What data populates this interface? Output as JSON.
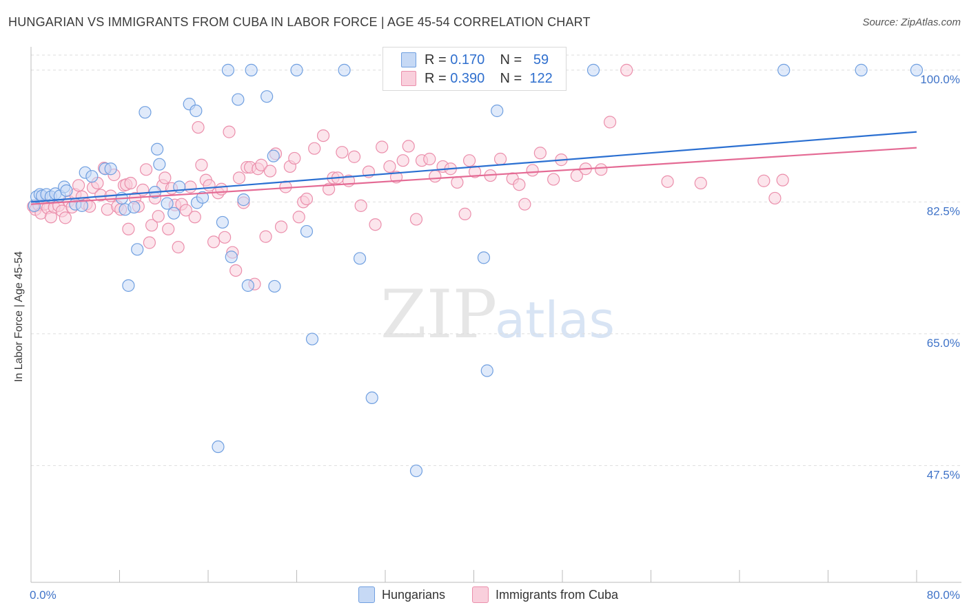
{
  "header": {
    "title": "HUNGARIAN VS IMMIGRANTS FROM CUBA IN LABOR FORCE | AGE 45-54 CORRELATION CHART",
    "source": "Source: ZipAtlas.com"
  },
  "watermark": {
    "zip": "ZIP",
    "atlas": "atlas"
  },
  "legend_top": {
    "rows": [
      {
        "r_label": "R =",
        "r_value": "0.170",
        "n_label": "N =",
        "n_value": "59"
      },
      {
        "r_label": "R =",
        "r_value": "0.390",
        "n_label": "N =",
        "n_value": "122"
      }
    ]
  },
  "legend_bottom": {
    "items": [
      "Hungarians",
      "Immigrants from Cuba"
    ]
  },
  "colors": {
    "blue_fill": "#c6d9f5",
    "blue_stroke": "#6f9fe0",
    "blue_line": "#2a6fd1",
    "pink_fill": "#f9cfdc",
    "pink_stroke": "#eb8eab",
    "pink_line": "#e46a94",
    "tick_label": "#3f73c8",
    "grid": "#dddddd"
  },
  "chart_data": {
    "type": "scatter",
    "title": "HUNGARIAN VS IMMIGRANTS FROM CUBA IN LABOR FORCE | AGE 45-54 CORRELATION CHART",
    "xlabel": "",
    "ylabel": "In Labor Force | Age 45-54",
    "xlim": [
      0,
      80
    ],
    "ylim": [
      32,
      102
    ],
    "x_tick_labels": [
      "0.0%",
      "80.0%"
    ],
    "y_ticks": [
      47.5,
      65.0,
      82.5,
      100.0
    ],
    "y_tick_labels": [
      "47.5%",
      "65.0%",
      "82.5%",
      "100.0%"
    ],
    "grid": true,
    "legend_position": "top-center",
    "series": [
      {
        "name": "Hungarians",
        "r": 0.17,
        "n": 59,
        "trend": {
          "x": [
            0,
            80
          ],
          "y": [
            82.5,
            91.8
          ]
        },
        "points": [
          [
            0.3,
            82.0
          ],
          [
            0.5,
            83.2
          ],
          [
            0.8,
            83.5
          ],
          [
            1.0,
            83.3
          ],
          [
            1.4,
            83.5
          ],
          [
            1.8,
            83.2
          ],
          [
            2.2,
            83.6
          ],
          [
            2.6,
            83.3
          ],
          [
            3.0,
            84.5
          ],
          [
            3.2,
            84.0
          ],
          [
            4.0,
            82.2
          ],
          [
            4.6,
            82.0
          ],
          [
            4.9,
            86.4
          ],
          [
            5.5,
            85.9
          ],
          [
            6.7,
            86.9
          ],
          [
            7.2,
            86.9
          ],
          [
            8.2,
            83.0
          ],
          [
            8.5,
            81.5
          ],
          [
            9.3,
            81.8
          ],
          [
            9.6,
            76.2
          ],
          [
            8.8,
            71.4
          ],
          [
            10.3,
            94.4
          ],
          [
            11.2,
            83.8
          ],
          [
            11.4,
            89.5
          ],
          [
            11.6,
            87.5
          ],
          [
            12.3,
            82.3
          ],
          [
            12.9,
            81.0
          ],
          [
            13.4,
            84.5
          ],
          [
            14.3,
            95.5
          ],
          [
            15.0,
            82.4
          ],
          [
            14.9,
            94.6
          ],
          [
            15.5,
            83.1
          ],
          [
            16.9,
            50.0
          ],
          [
            17.3,
            79.8
          ],
          [
            18.1,
            75.2
          ],
          [
            18.7,
            96.1
          ],
          [
            19.2,
            82.8
          ],
          [
            19.6,
            71.4
          ],
          [
            21.3,
            96.5
          ],
          [
            21.9,
            88.6
          ],
          [
            22.0,
            71.3
          ],
          [
            24.9,
            78.6
          ],
          [
            25.4,
            64.3
          ],
          [
            28.3,
            100.0
          ],
          [
            29.7,
            75.0
          ],
          [
            30.8,
            56.5
          ],
          [
            33.9,
            100.0
          ],
          [
            34.8,
            46.8
          ],
          [
            38.6,
            100.0
          ],
          [
            40.9,
            75.1
          ],
          [
            41.2,
            60.1
          ],
          [
            42.1,
            94.6
          ],
          [
            50.8,
            100.0
          ],
          [
            68.0,
            100.0
          ],
          [
            75.0,
            100.0
          ],
          [
            80.0,
            100.0
          ],
          [
            17.8,
            100.0
          ],
          [
            19.9,
            100.0
          ],
          [
            24.0,
            100.0
          ]
        ]
      },
      {
        "name": "Immigrants from Cuba",
        "r": 0.39,
        "n": 122,
        "trend": {
          "x": [
            0,
            80
          ],
          "y": [
            82.2,
            89.7
          ]
        },
        "points": [
          [
            0.2,
            81.9
          ],
          [
            0.4,
            81.5
          ],
          [
            0.7,
            82.1
          ],
          [
            0.9,
            81.0
          ],
          [
            1.2,
            82.2
          ],
          [
            1.5,
            81.7
          ],
          [
            1.8,
            80.5
          ],
          [
            2.1,
            81.8
          ],
          [
            2.5,
            82.0
          ],
          [
            2.8,
            81.3
          ],
          [
            3.1,
            80.4
          ],
          [
            3.4,
            82.6
          ],
          [
            3.7,
            81.8
          ],
          [
            4.0,
            83.5
          ],
          [
            4.3,
            84.7
          ],
          [
            4.6,
            83.2
          ],
          [
            5.0,
            82.2
          ],
          [
            5.3,
            81.9
          ],
          [
            5.6,
            84.4
          ],
          [
            6.0,
            85.0
          ],
          [
            6.3,
            83.4
          ],
          [
            6.6,
            87.0
          ],
          [
            6.9,
            81.5
          ],
          [
            7.2,
            83.3
          ],
          [
            7.5,
            86.1
          ],
          [
            7.8,
            81.9
          ],
          [
            8.1,
            81.5
          ],
          [
            8.4,
            84.7
          ],
          [
            8.6,
            84.8
          ],
          [
            8.8,
            78.9
          ],
          [
            9.0,
            85.0
          ],
          [
            9.4,
            83.0
          ],
          [
            9.7,
            81.9
          ],
          [
            10.1,
            84.1
          ],
          [
            10.4,
            86.8
          ],
          [
            10.7,
            77.1
          ],
          [
            10.9,
            79.4
          ],
          [
            11.2,
            83.0
          ],
          [
            11.5,
            80.6
          ],
          [
            11.9,
            84.7
          ],
          [
            12.1,
            85.7
          ],
          [
            12.4,
            78.9
          ],
          [
            12.7,
            84.3
          ],
          [
            13.0,
            82.1
          ],
          [
            13.3,
            76.5
          ],
          [
            13.6,
            82.2
          ],
          [
            14.0,
            81.4
          ],
          [
            14.4,
            84.5
          ],
          [
            14.8,
            80.5
          ],
          [
            15.1,
            92.4
          ],
          [
            15.4,
            87.4
          ],
          [
            15.8,
            85.4
          ],
          [
            16.1,
            84.7
          ],
          [
            16.5,
            77.2
          ],
          [
            16.9,
            83.7
          ],
          [
            17.2,
            84.2
          ],
          [
            17.5,
            77.8
          ],
          [
            17.9,
            91.8
          ],
          [
            18.2,
            75.8
          ],
          [
            18.5,
            73.4
          ],
          [
            18.8,
            85.7
          ],
          [
            19.2,
            82.4
          ],
          [
            19.5,
            87.1
          ],
          [
            19.8,
            87.1
          ],
          [
            20.2,
            71.6
          ],
          [
            20.5,
            86.9
          ],
          [
            20.8,
            87.4
          ],
          [
            21.2,
            77.9
          ],
          [
            21.6,
            86.6
          ],
          [
            22.1,
            88.9
          ],
          [
            22.6,
            79.2
          ],
          [
            23.0,
            84.5
          ],
          [
            23.4,
            87.2
          ],
          [
            23.8,
            88.3
          ],
          [
            24.2,
            80.5
          ],
          [
            24.6,
            82.5
          ],
          [
            24.9,
            82.9
          ],
          [
            25.6,
            89.6
          ],
          [
            26.4,
            91.3
          ],
          [
            26.9,
            84.2
          ],
          [
            27.3,
            85.7
          ],
          [
            27.7,
            85.7
          ],
          [
            28.1,
            89.1
          ],
          [
            28.7,
            85.3
          ],
          [
            29.2,
            88.5
          ],
          [
            29.8,
            82.0
          ],
          [
            30.5,
            86.5
          ],
          [
            31.1,
            79.5
          ],
          [
            31.7,
            89.8
          ],
          [
            32.4,
            87.2
          ],
          [
            33.0,
            85.8
          ],
          [
            33.6,
            88.0
          ],
          [
            34.1,
            89.9
          ],
          [
            34.8,
            80.2
          ],
          [
            35.3,
            88.0
          ],
          [
            36.0,
            88.2
          ],
          [
            36.5,
            85.9
          ],
          [
            37.2,
            87.2
          ],
          [
            37.9,
            86.9
          ],
          [
            38.5,
            85.1
          ],
          [
            39.2,
            80.9
          ],
          [
            39.6,
            88.0
          ],
          [
            40.1,
            86.5
          ],
          [
            41.5,
            86.0
          ],
          [
            42.4,
            88.2
          ],
          [
            43.5,
            85.6
          ],
          [
            44.1,
            84.8
          ],
          [
            44.6,
            82.2
          ],
          [
            45.3,
            86.7
          ],
          [
            46.0,
            89.0
          ],
          [
            47.2,
            85.5
          ],
          [
            47.9,
            88.1
          ],
          [
            49.3,
            86.0
          ],
          [
            50.1,
            86.9
          ],
          [
            51.5,
            86.8
          ],
          [
            52.3,
            93.1
          ],
          [
            53.8,
            100.0
          ],
          [
            57.5,
            85.2
          ],
          [
            60.5,
            85.0
          ],
          [
            66.2,
            85.3
          ],
          [
            67.2,
            83.0
          ],
          [
            67.9,
            85.4
          ]
        ]
      }
    ]
  }
}
